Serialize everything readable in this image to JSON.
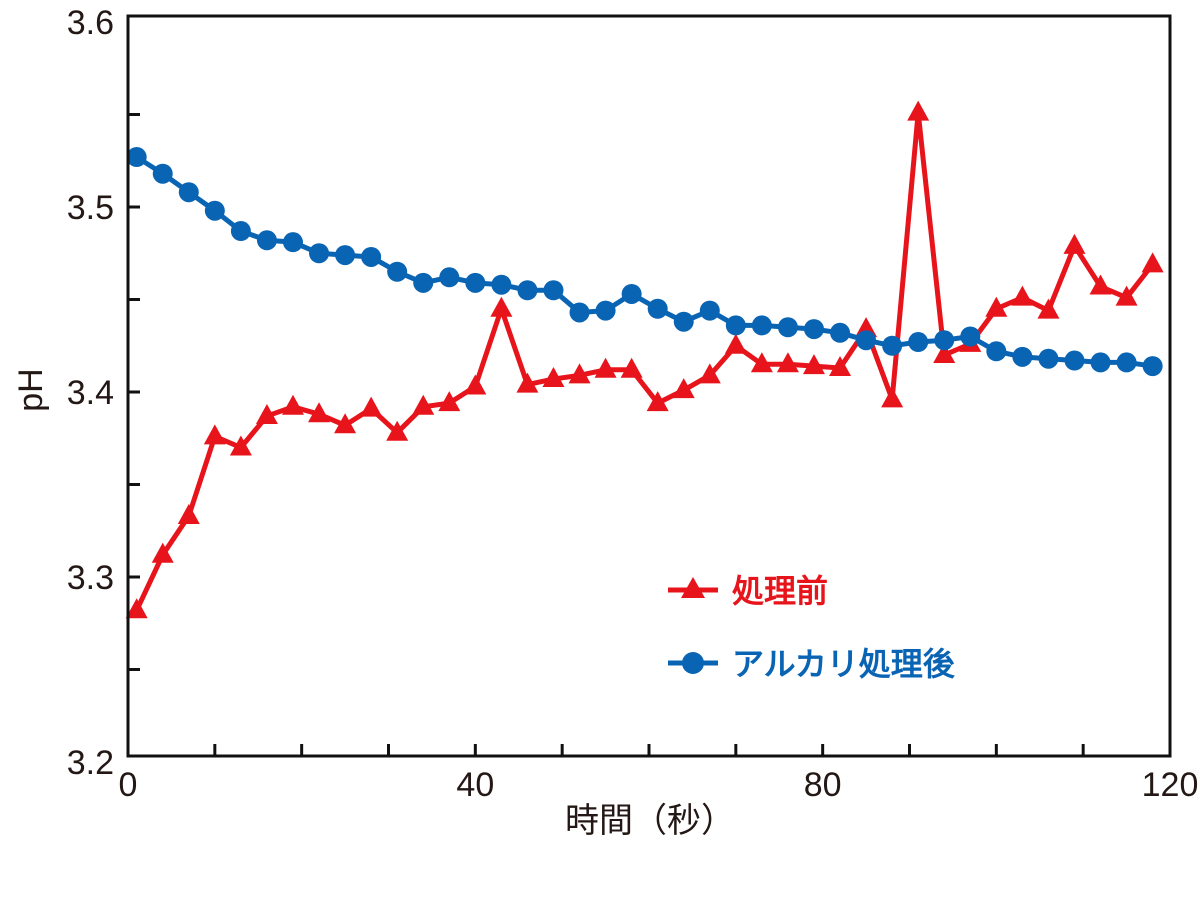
{
  "chart_data": {
    "type": "line",
    "title": "",
    "xlabel": "時間（秒）",
    "ylabel": "pH",
    "xlim": [
      0,
      120
    ],
    "ylim": [
      3.2,
      3.6
    ],
    "xticks": [
      0,
      40,
      80,
      120
    ],
    "xtick_labels": [
      "0",
      "40",
      "80",
      "120"
    ],
    "yticks": [
      3.2,
      3.3,
      3.4,
      3.5,
      3.6
    ],
    "ytick_labels": [
      "3.2",
      "3.3",
      "3.4",
      "3.5",
      "3.6"
    ],
    "x_minor_step": 10,
    "y_minor_step": 0.05,
    "grid": false,
    "legend_position": "lower-right",
    "x": [
      1,
      4,
      7,
      10,
      13,
      16,
      19,
      22,
      25,
      28,
      31,
      34,
      37,
      40,
      43,
      46,
      49,
      52,
      55,
      58,
      61,
      64,
      67,
      70,
      73,
      76,
      79,
      82,
      85,
      88,
      91,
      94,
      97,
      100,
      103,
      106,
      109,
      112,
      115,
      118
    ],
    "series": [
      {
        "name": "処理前",
        "color": "#e8141b",
        "marker": "triangle",
        "values": [
          3.282,
          3.312,
          3.333,
          3.376,
          3.37,
          3.387,
          3.392,
          3.388,
          3.382,
          3.391,
          3.378,
          3.392,
          3.394,
          3.403,
          3.445,
          3.404,
          3.407,
          3.409,
          3.412,
          3.412,
          3.394,
          3.401,
          3.409,
          3.425,
          3.415,
          3.415,
          3.414,
          3.413,
          3.434,
          3.396,
          3.551,
          3.42,
          3.426,
          3.445,
          3.451,
          3.444,
          3.479,
          3.457,
          3.451,
          3.469
        ]
      },
      {
        "name": "アルカリ処理後",
        "color": "#0a64b4",
        "marker": "circle",
        "values": [
          3.527,
          3.518,
          3.508,
          3.498,
          3.487,
          3.482,
          3.481,
          3.475,
          3.474,
          3.473,
          3.465,
          3.459,
          3.462,
          3.459,
          3.458,
          3.455,
          3.455,
          3.443,
          3.444,
          3.453,
          3.445,
          3.438,
          3.444,
          3.436,
          3.436,
          3.435,
          3.434,
          3.432,
          3.428,
          3.425,
          3.427,
          3.428,
          3.43,
          3.422,
          3.419,
          3.418,
          3.417,
          3.416,
          3.416,
          3.414
        ]
      }
    ]
  }
}
